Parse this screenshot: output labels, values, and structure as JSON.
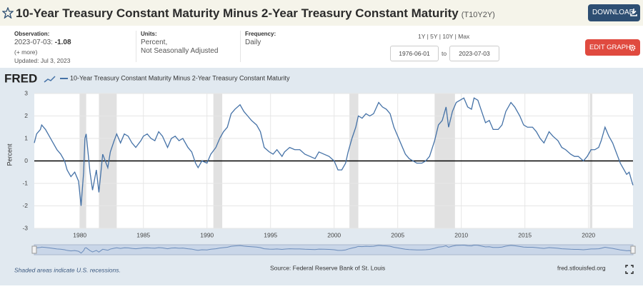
{
  "header": {
    "title": "10-Year Treasury Constant Maturity Minus 2-Year Treasury Constant Maturity",
    "series_id": "(T10Y2Y)",
    "download": "DOWNLOAD"
  },
  "info": {
    "observation_label": "Observation:",
    "observation_date": "2023-07-03:",
    "observation_value": "-1.08",
    "more": "(+ more)",
    "updated": "Updated: Jul 3, 2023",
    "units_label": "Units:",
    "units": [
      "Percent,",
      "Not Seasonally Adjusted"
    ],
    "frequency_label": "Frequency:",
    "frequency": "Daily",
    "ranges": "1Y | 5Y | 10Y | Max",
    "start": "1976-06-01",
    "to": "to",
    "end": "2023-07-03",
    "edit": "EDIT GRAPH"
  },
  "logo": "FRED",
  "chart_data": {
    "type": "line",
    "ylabel": "Percent",
    "x": [
      1976.42,
      1976.6,
      1976.9,
      1977.0,
      1977.3,
      1977.6,
      1977.9,
      1978.2,
      1978.5,
      1978.8,
      1979.0,
      1979.3,
      1979.6,
      1979.9,
      1980.1,
      1980.3,
      1980.4,
      1980.5,
      1980.8,
      1981.0,
      1981.3,
      1981.5,
      1981.8,
      1982.0,
      1982.2,
      1982.4,
      1982.7,
      1982.9,
      1983.2,
      1983.5,
      1983.8,
      1984.1,
      1984.4,
      1984.8,
      1985.0,
      1985.3,
      1985.6,
      1985.9,
      1986.2,
      1986.5,
      1986.9,
      1987.2,
      1987.5,
      1987.8,
      1988.1,
      1988.5,
      1988.8,
      1989.1,
      1989.3,
      1989.6,
      1990.0,
      1990.3,
      1990.7,
      1991.0,
      1991.3,
      1991.6,
      1991.9,
      1992.2,
      1992.6,
      1992.9,
      1993.2,
      1993.5,
      1993.9,
      1994.2,
      1994.5,
      1994.9,
      1995.2,
      1995.5,
      1995.9,
      1996.1,
      1996.5,
      1996.9,
      1997.3,
      1997.7,
      1998.1,
      1998.5,
      1998.8,
      1999.2,
      1999.6,
      2000.0,
      2000.3,
      2000.6,
      2000.9,
      2001.1,
      2001.4,
      2001.7,
      2001.9,
      2002.2,
      2002.5,
      2002.8,
      2003.1,
      2003.5,
      2003.8,
      2004.1,
      2004.4,
      2004.7,
      2005.0,
      2005.3,
      2005.6,
      2005.9,
      2006.2,
      2006.5,
      2006.9,
      2007.2,
      2007.5,
      2007.9,
      2008.2,
      2008.5,
      2008.8,
      2009.0,
      2009.3,
      2009.6,
      2009.9,
      2010.2,
      2010.5,
      2010.8,
      2011.0,
      2011.3,
      2011.6,
      2011.9,
      2012.2,
      2012.5,
      2012.9,
      2013.2,
      2013.5,
      2013.9,
      2014.2,
      2014.6,
      2014.9,
      2015.2,
      2015.6,
      2015.9,
      2016.2,
      2016.5,
      2016.9,
      2017.2,
      2017.6,
      2017.9,
      2018.2,
      2018.6,
      2018.9,
      2019.2,
      2019.6,
      2019.9,
      2020.2,
      2020.5,
      2020.8,
      2021.0,
      2021.3,
      2021.6,
      2021.9,
      2022.1,
      2022.3,
      2022.5,
      2022.8,
      2023.0,
      2023.2,
      2023.4,
      2023.5
    ],
    "series": [
      {
        "name": "10-Year Treasury Constant Maturity Minus 2-Year Treasury Constant Maturity",
        "color": "#4572a7",
        "values": [
          0.8,
          1.2,
          1.4,
          1.6,
          1.4,
          1.1,
          0.8,
          0.5,
          0.3,
          0.0,
          -0.4,
          -0.7,
          -0.5,
          -0.9,
          -2.0,
          -0.5,
          1.0,
          1.2,
          -0.5,
          -1.3,
          -0.4,
          -1.4,
          0.3,
          0.0,
          -0.3,
          0.4,
          0.9,
          1.2,
          0.8,
          1.2,
          1.1,
          0.8,
          0.6,
          0.9,
          1.1,
          1.2,
          1.0,
          0.9,
          1.3,
          1.1,
          0.6,
          1.0,
          1.1,
          0.9,
          1.0,
          0.6,
          0.4,
          -0.1,
          -0.3,
          0.0,
          -0.1,
          0.3,
          0.6,
          1.0,
          1.3,
          1.5,
          2.1,
          2.3,
          2.5,
          2.2,
          2.0,
          1.8,
          1.6,
          1.3,
          0.6,
          0.4,
          0.3,
          0.5,
          0.2,
          0.4,
          0.6,
          0.5,
          0.5,
          0.3,
          0.2,
          0.1,
          0.4,
          0.3,
          0.2,
          0.0,
          -0.4,
          -0.4,
          -0.1,
          0.4,
          1.0,
          1.5,
          2.0,
          1.9,
          2.1,
          2.0,
          2.1,
          2.6,
          2.4,
          2.3,
          2.1,
          1.5,
          1.1,
          0.7,
          0.3,
          0.1,
          0.0,
          -0.1,
          -0.1,
          0.0,
          0.2,
          0.9,
          1.6,
          1.8,
          2.4,
          1.5,
          2.2,
          2.6,
          2.7,
          2.8,
          2.4,
          2.3,
          2.8,
          2.7,
          2.2,
          1.7,
          1.8,
          1.4,
          1.4,
          1.6,
          2.2,
          2.6,
          2.4,
          2.0,
          1.6,
          1.5,
          1.5,
          1.3,
          1.0,
          0.8,
          1.3,
          1.1,
          0.9,
          0.6,
          0.5,
          0.3,
          0.2,
          0.2,
          0.0,
          0.2,
          0.5,
          0.5,
          0.6,
          0.9,
          1.5,
          1.1,
          0.8,
          0.5,
          0.2,
          -0.1,
          -0.4,
          -0.6,
          -0.5,
          -0.9,
          -1.08
        ]
      }
    ],
    "recessions": [
      [
        1980.0,
        1980.5
      ],
      [
        1981.5,
        1982.9
      ],
      [
        1990.5,
        1991.2
      ],
      [
        2001.2,
        2001.9
      ],
      [
        2007.9,
        2009.5
      ],
      [
        2020.1,
        2020.3
      ]
    ],
    "recession_color": "#e1e1e1",
    "xlim": [
      1976.42,
      2023.5
    ],
    "xticks": [
      1980,
      1985,
      1990,
      1995,
      2000,
      2005,
      2010,
      2015,
      2020
    ],
    "ylim": [
      -3,
      3
    ],
    "yticks": [
      -3,
      -2,
      -1,
      0,
      1,
      2,
      3
    ],
    "grid": true
  },
  "footer": {
    "note": "Shaded areas indicate U.S. recessions.",
    "source": "Source: Federal Reserve Bank of St. Louis",
    "site": "fred.stlouisfed.org"
  }
}
